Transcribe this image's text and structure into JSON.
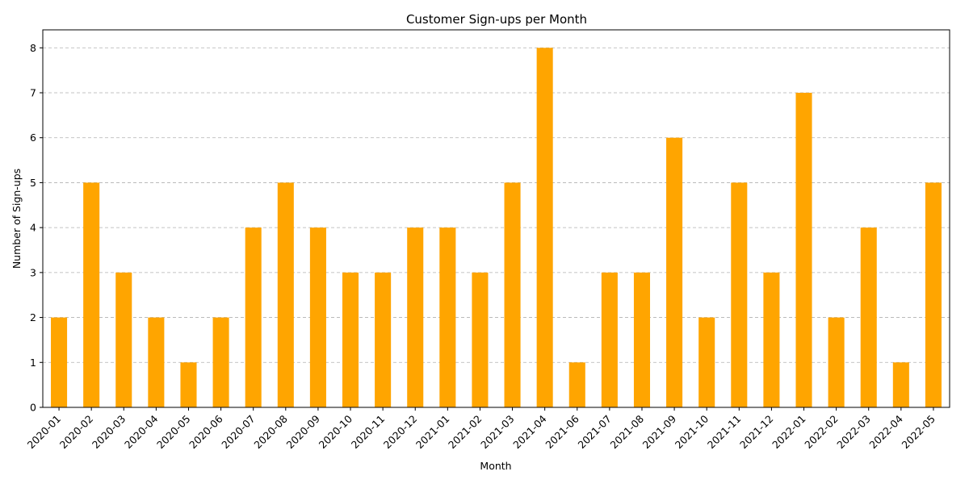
{
  "chart_data": {
    "type": "bar",
    "title": "Customer Sign-ups per Month",
    "xlabel": "Month",
    "ylabel": "Number of Sign-ups",
    "ylim": [
      0,
      8.4
    ],
    "yticks": [
      0,
      1,
      2,
      3,
      4,
      5,
      6,
      7,
      8
    ],
    "grid": "y-dashed",
    "bar_color": "#FFA500",
    "categories": [
      "2020-01",
      "2020-02",
      "2020-03",
      "2020-04",
      "2020-05",
      "2020-06",
      "2020-07",
      "2020-08",
      "2020-09",
      "2020-10",
      "2020-11",
      "2020-12",
      "2021-01",
      "2021-02",
      "2021-03",
      "2021-04",
      "2021-06",
      "2021-07",
      "2021-08",
      "2021-09",
      "2021-10",
      "2021-11",
      "2021-12",
      "2022-01",
      "2022-02",
      "2022-03",
      "2022-04",
      "2022-05"
    ],
    "values": [
      2,
      5,
      3,
      2,
      1,
      2,
      4,
      5,
      4,
      3,
      3,
      4,
      4,
      3,
      5,
      8,
      1,
      3,
      3,
      6,
      2,
      5,
      3,
      7,
      2,
      4,
      1,
      5
    ]
  }
}
